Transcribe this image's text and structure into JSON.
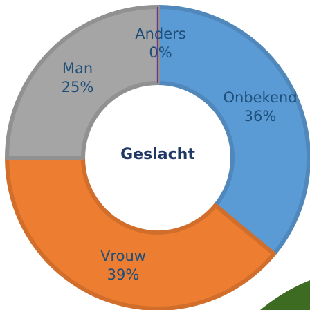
{
  "chart_data": {
    "type": "donut",
    "title": "Geslacht",
    "categories": [
      "Anders",
      "Onbekend",
      "Vrouw",
      "Man"
    ],
    "values": [
      0,
      36,
      39,
      25
    ],
    "value_labels": [
      "0%",
      "36%",
      "39%",
      "25%"
    ],
    "colors": [
      "#7030a0",
      "#5b9bd5",
      "#ed7d31",
      "#a5a5a5"
    ]
  }
}
